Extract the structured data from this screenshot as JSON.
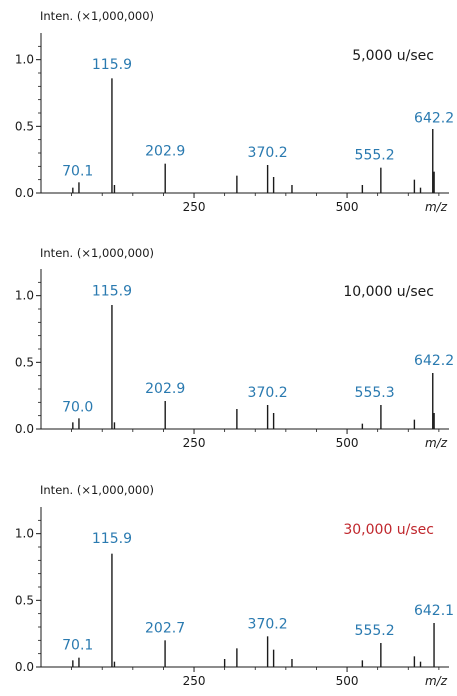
{
  "chart_data": [
    {
      "type": "bar",
      "ylabel": "Inten. (×1,000,000)",
      "xlabel": "m/z",
      "speed": "5,000 u/sec",
      "speed_color": "#1a1a1a",
      "xlim": [
        0,
        660
      ],
      "ylim": [
        0,
        1.2
      ],
      "xticks": [
        250,
        500
      ],
      "yticks": [
        0.0,
        0.5,
        1.0
      ],
      "ytick_labels": [
        "0.0",
        "0.5",
        "1.0"
      ],
      "grid": false,
      "peaks": [
        {
          "x": 52,
          "y": 0.04
        },
        {
          "x": 62,
          "y": 0.08
        },
        {
          "x": 115.9,
          "y": 0.86
        },
        {
          "x": 120,
          "y": 0.06
        },
        {
          "x": 202.9,
          "y": 0.22
        },
        {
          "x": 320,
          "y": 0.13
        },
        {
          "x": 370.2,
          "y": 0.21
        },
        {
          "x": 380,
          "y": 0.12
        },
        {
          "x": 410,
          "y": 0.06
        },
        {
          "x": 525,
          "y": 0.06
        },
        {
          "x": 555.2,
          "y": 0.19
        },
        {
          "x": 610,
          "y": 0.1
        },
        {
          "x": 620,
          "y": 0.04
        },
        {
          "x": 640,
          "y": 0.48
        },
        {
          "x": 642.2,
          "y": 0.16
        }
      ],
      "labels": [
        {
          "x": 60,
          "y": 0.1,
          "text": "70.1"
        },
        {
          "x": 115.9,
          "y": 0.9,
          "text": "115.9"
        },
        {
          "x": 202.9,
          "y": 0.25,
          "text": "202.9"
        },
        {
          "x": 370.2,
          "y": 0.24,
          "text": "370.2"
        },
        {
          "x": 545,
          "y": 0.22,
          "text": "555.2"
        },
        {
          "x": 642.2,
          "y": 0.5,
          "text": "642.2"
        }
      ]
    },
    {
      "type": "bar",
      "ylabel": "Inten. (×1,000,000)",
      "xlabel": "m/z",
      "speed": "10,000 u/sec",
      "speed_color": "#1a1a1a",
      "xlim": [
        0,
        660
      ],
      "ylim": [
        0,
        1.2
      ],
      "xticks": [
        250,
        500
      ],
      "yticks": [
        0.0,
        0.5,
        1.0
      ],
      "ytick_labels": [
        "0.0",
        "0.5",
        "1.0"
      ],
      "grid": false,
      "peaks": [
        {
          "x": 52,
          "y": 0.05
        },
        {
          "x": 62,
          "y": 0.08
        },
        {
          "x": 115.9,
          "y": 0.93
        },
        {
          "x": 120,
          "y": 0.05
        },
        {
          "x": 202.9,
          "y": 0.21
        },
        {
          "x": 320,
          "y": 0.15
        },
        {
          "x": 370.2,
          "y": 0.18
        },
        {
          "x": 380,
          "y": 0.12
        },
        {
          "x": 525,
          "y": 0.04
        },
        {
          "x": 555.3,
          "y": 0.18
        },
        {
          "x": 610,
          "y": 0.07
        },
        {
          "x": 640,
          "y": 0.42
        },
        {
          "x": 642.2,
          "y": 0.12
        }
      ],
      "labels": [
        {
          "x": 60,
          "y": 0.1,
          "text": "70.0"
        },
        {
          "x": 115.9,
          "y": 0.97,
          "text": "115.9"
        },
        {
          "x": 202.9,
          "y": 0.24,
          "text": "202.9"
        },
        {
          "x": 370.2,
          "y": 0.21,
          "text": "370.2"
        },
        {
          "x": 545,
          "y": 0.21,
          "text": "555.3"
        },
        {
          "x": 642.2,
          "y": 0.45,
          "text": "642.2"
        }
      ]
    },
    {
      "type": "bar",
      "ylabel": "Inten. (×1,000,000)",
      "xlabel": "m/z",
      "speed": "30,000 u/sec",
      "speed_color": "#c0272d",
      "xlim": [
        0,
        660
      ],
      "ylim": [
        0,
        1.2
      ],
      "xticks": [
        250,
        500
      ],
      "yticks": [
        0.0,
        0.5,
        1.0
      ],
      "ytick_labels": [
        "0.0",
        "0.5",
        "1.0"
      ],
      "grid": false,
      "peaks": [
        {
          "x": 52,
          "y": 0.05
        },
        {
          "x": 62,
          "y": 0.07
        },
        {
          "x": 115.9,
          "y": 0.85
        },
        {
          "x": 120,
          "y": 0.04
        },
        {
          "x": 202.7,
          "y": 0.2
        },
        {
          "x": 300,
          "y": 0.06
        },
        {
          "x": 320,
          "y": 0.14
        },
        {
          "x": 370.2,
          "y": 0.23
        },
        {
          "x": 380,
          "y": 0.13
        },
        {
          "x": 410,
          "y": 0.06
        },
        {
          "x": 525,
          "y": 0.05
        },
        {
          "x": 555.2,
          "y": 0.18
        },
        {
          "x": 610,
          "y": 0.08
        },
        {
          "x": 620,
          "y": 0.04
        },
        {
          "x": 642.1,
          "y": 0.33
        }
      ],
      "labels": [
        {
          "x": 60,
          "y": 0.1,
          "text": "70.1"
        },
        {
          "x": 115.9,
          "y": 0.9,
          "text": "115.9"
        },
        {
          "x": 202.7,
          "y": 0.23,
          "text": "202.7"
        },
        {
          "x": 370.2,
          "y": 0.26,
          "text": "370.2"
        },
        {
          "x": 545,
          "y": 0.21,
          "text": "555.2"
        },
        {
          "x": 642.1,
          "y": 0.36,
          "text": "642.1"
        }
      ]
    }
  ],
  "colors": {
    "peak_label": "#2a7ab0",
    "axis": "#1a1a1a",
    "text": "#1a1a1a"
  }
}
